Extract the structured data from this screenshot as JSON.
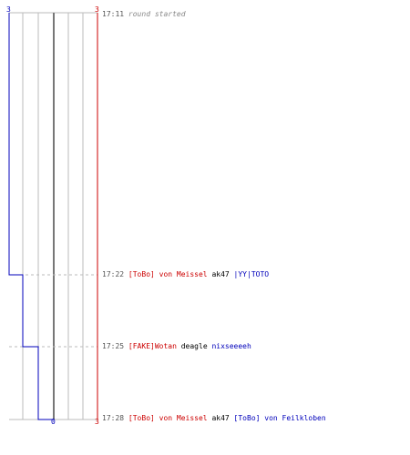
{
  "colors": {
    "team_a": "#0000bb",
    "team_b": "#cc0000",
    "grid": "#bbbbbb",
    "center": "#777777",
    "dash": "#bbbbbb",
    "weapon": "#000000",
    "time": "#555555"
  },
  "scores": {
    "left_top": "3",
    "right_top": "3",
    "bottom_center": "0",
    "bottom_right": "3"
  },
  "events": [
    {
      "time": "17:11",
      "text": "round started"
    },
    {
      "time": "17:22",
      "killer": "[ToBo] von Meissel",
      "weapon": "ak47",
      "victim": "|YY|TOTO"
    },
    {
      "time": "17:25",
      "killer": "[FAKE]Wotan",
      "weapon": "deagle",
      "victim": "nixseeeeh"
    },
    {
      "time": "17:28",
      "killer": "[ToBo] von Meissel",
      "weapon": "ak47",
      "victim": "[ToBo] von Feilkloben"
    }
  ]
}
